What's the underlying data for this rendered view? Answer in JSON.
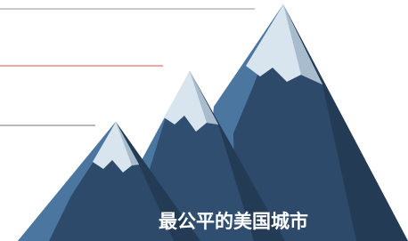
{
  "caption": "最公平的美国城市"
}
